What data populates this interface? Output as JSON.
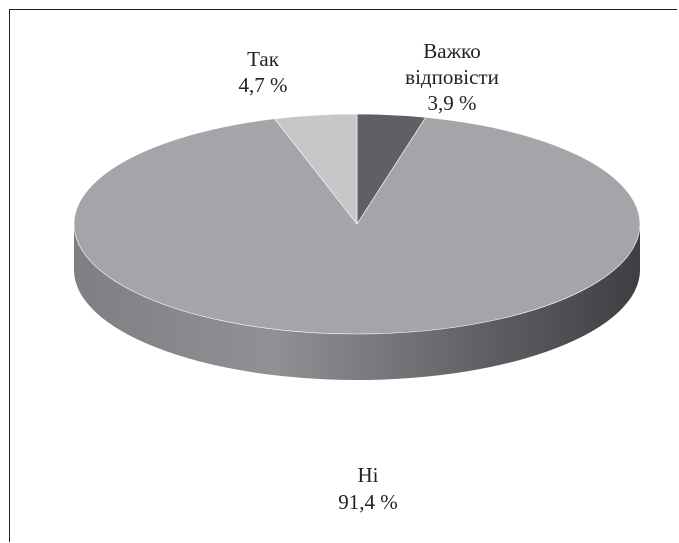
{
  "chart_data": {
    "type": "pie",
    "title": "",
    "legend": "none",
    "slices": [
      {
        "label": "Важко",
        "label_line2": "відповісти",
        "value": 3.9,
        "value_text": "3,9 %",
        "color": "#5f6063"
      },
      {
        "label": "Ні",
        "label_line2": "",
        "value": 91.4,
        "value_text": "91,4 %",
        "color": "#a4a5a8"
      },
      {
        "label": "Так",
        "label_line2": "",
        "value": 4.7,
        "value_text": "4,7 %",
        "color": "#c6c7c9"
      }
    ]
  }
}
